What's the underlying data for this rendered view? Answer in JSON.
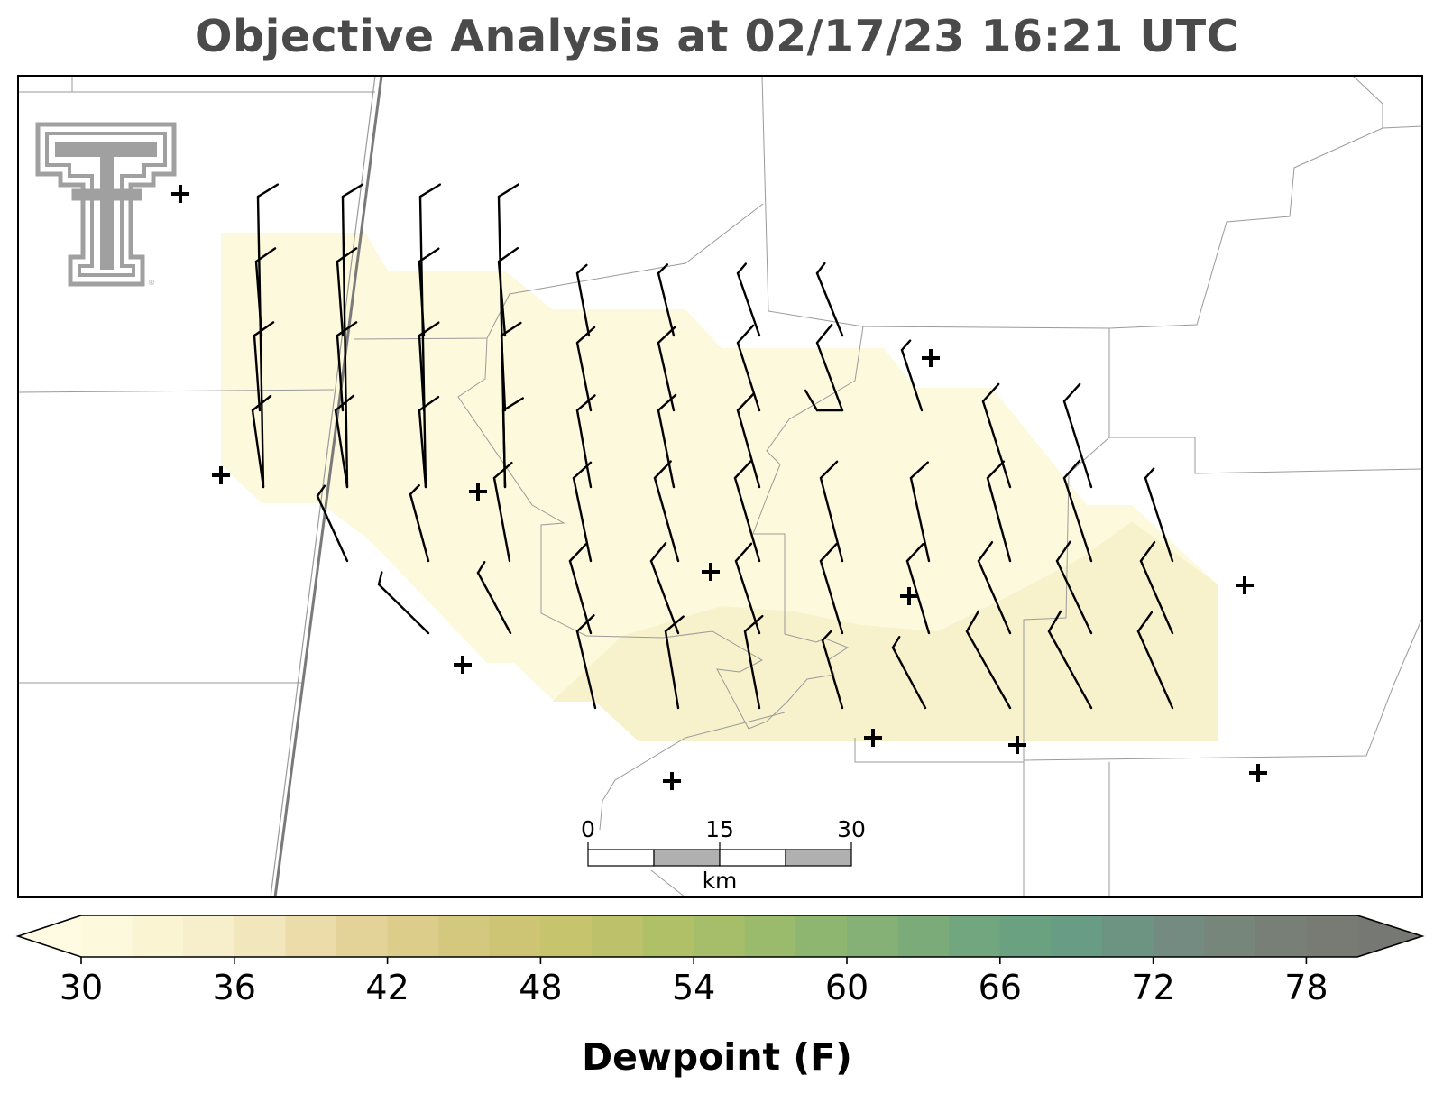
{
  "title": "Objective Analysis at 02/17/23 16:21 UTC",
  "colorbar": {
    "label": "Dewpoint (F)",
    "min": 30,
    "max": 80,
    "step": 2,
    "ticks": [
      "30",
      "36",
      "42",
      "48",
      "54",
      "60",
      "66",
      "72",
      "78"
    ],
    "colors": [
      "#fdf9dc",
      "#fbf4d3",
      "#f7eecb",
      "#f2e6bd",
      "#ebdca9",
      "#e4d398",
      "#dccd8a",
      "#d4c77e",
      "#cdc474",
      "#c7c46e",
      "#bcc16a",
      "#afc067",
      "#a6bd69",
      "#9aba6c",
      "#8fb671",
      "#86b176",
      "#7cab7a",
      "#72a67f",
      "#6aa181",
      "#689c84",
      "#6d9483",
      "#738b80",
      "#77867b",
      "#777f77",
      "#787a74"
    ]
  },
  "scale_bar": {
    "labels": [
      "0",
      "15",
      "30"
    ],
    "unit": "km"
  },
  "logo": {
    "name": "texas-tech-double-t-logo"
  }
}
